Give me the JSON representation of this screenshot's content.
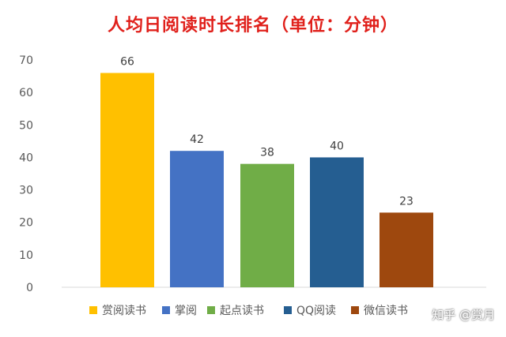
{
  "chart_data": {
    "type": "bar",
    "title": "人均日阅读时长排名（单位：分钟）",
    "categories": [
      "赏阅读书",
      "掌阅",
      "起点读书",
      "QQ阅读",
      "微信读书"
    ],
    "values": [
      66,
      42,
      38,
      40,
      23
    ],
    "colors": [
      "#ffc000",
      "#4472c4",
      "#70ad47",
      "#255e91",
      "#9e480e"
    ],
    "yticks": [
      0,
      10,
      20,
      30,
      40,
      50,
      60,
      70
    ],
    "ylim": [
      0,
      70
    ],
    "grid": false,
    "legend_position": "bottom",
    "xlabel": "",
    "ylabel": ""
  },
  "watermark": "知乎 @赏月"
}
